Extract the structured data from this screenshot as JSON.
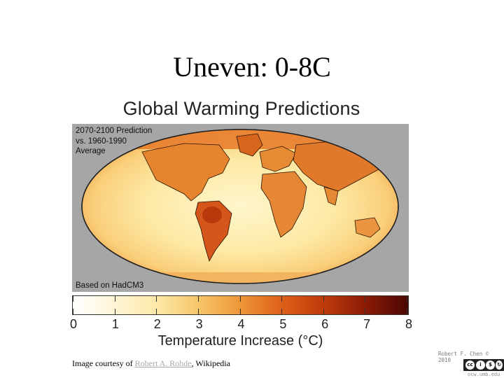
{
  "slide": {
    "title": "Uneven: 0-8C"
  },
  "figure": {
    "title": "Global Warming Predictions",
    "prediction_label_line1": "2070-2100 Prediction",
    "prediction_label_line2": "vs. 1960-1990",
    "prediction_label_line3": "Average",
    "model_label": "Based on HadCM3",
    "colorbar": {
      "ticks": [
        "0",
        "1",
        "2",
        "3",
        "4",
        "5",
        "6",
        "7",
        "8"
      ],
      "min": 0,
      "max": 8,
      "label": "Temperature Increase (°C)"
    }
  },
  "credit": {
    "prefix": "Image courtesy of ",
    "author_link": "Robert A. Rohde",
    "suffix": ", Wikipedia"
  },
  "footer": {
    "author": "Robert F. Chen © 2010",
    "license": "cc by nc sa",
    "site": "ocw.umb.edu"
  }
}
